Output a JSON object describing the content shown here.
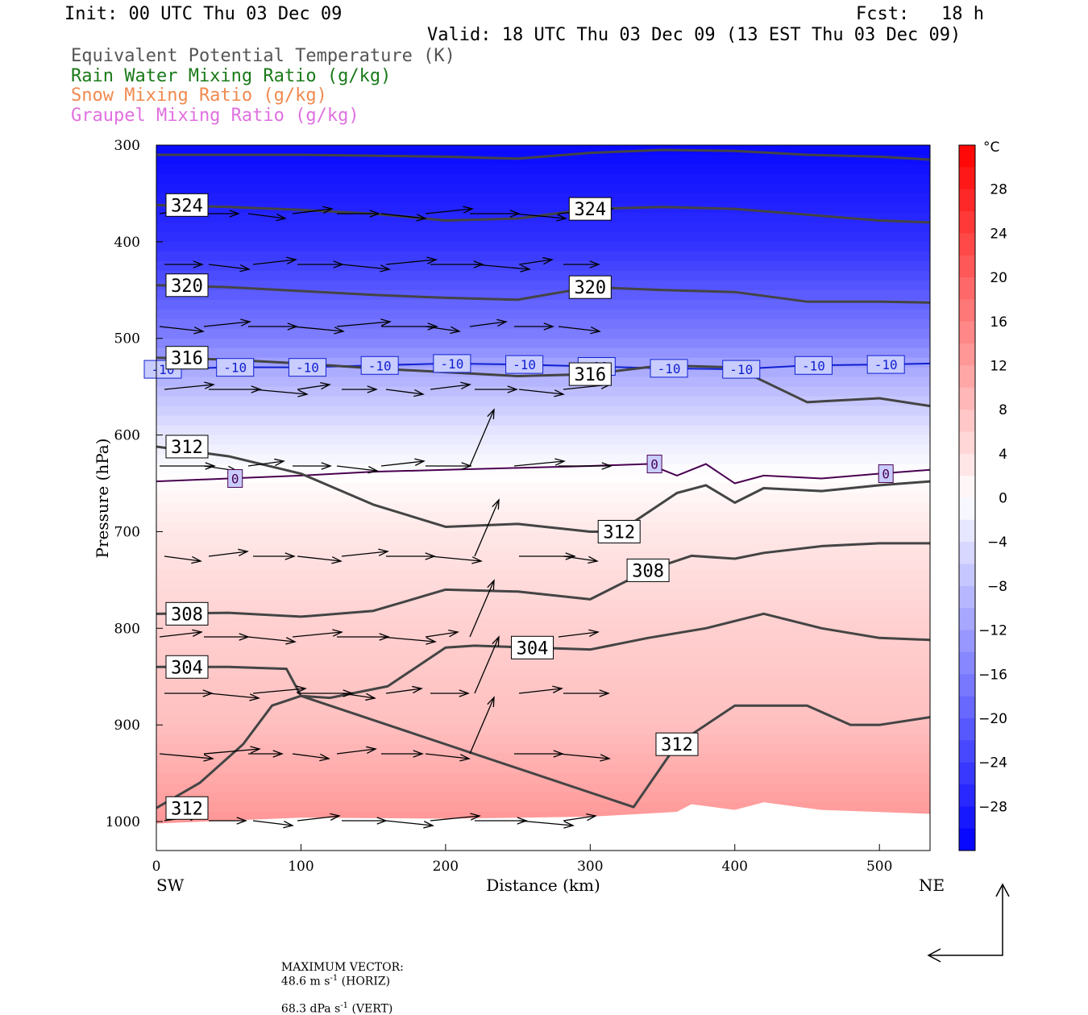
{
  "header": {
    "init": "Init: 00 UTC Thu 03 Dec 09",
    "fcst": "Fcst:   18 h",
    "valid": "Valid: 18 UTC Thu 03 Dec 09 (13 EST Thu 03 Dec 09)"
  },
  "legend": [
    {
      "text": "Equivalent Potential Temperature (K)",
      "color": "#555555"
    },
    {
      "text": "Rain Water Mixing Ratio (g/kg)",
      "color": "#1a7a1a"
    },
    {
      "text": "Snow Mixing Ratio (g/kg)",
      "color": "#f08a50"
    },
    {
      "text": "Graupel Mixing Ratio (g/kg)",
      "color": "#e070e0"
    }
  ],
  "chart_data": {
    "type": "cross-section",
    "xlabel": "Distance (km)",
    "ylabel": "Pressure (hPa)",
    "xlim": [
      0,
      535
    ],
    "ylim": [
      1030,
      300
    ],
    "x_ticks": [
      0,
      100,
      200,
      300,
      400,
      500
    ],
    "y_ticks": [
      300,
      400,
      500,
      600,
      700,
      800,
      900,
      1000
    ],
    "left_end_label": "SW",
    "right_end_label": "NE",
    "colorbar": {
      "unit": "°C",
      "ticks": [
        28,
        24,
        20,
        16,
        12,
        8,
        4,
        0,
        -4,
        -8,
        -12,
        -16,
        -20,
        -24,
        -28
      ],
      "range": [
        -32,
        32
      ]
    },
    "temperature_field": {
      "note": "shaded temperature (°C); approximate representative profile vs pressure",
      "levels_hPa": [
        300,
        400,
        500,
        530,
        600,
        640,
        700,
        800,
        900,
        1000
      ],
      "temp_C": [
        -31,
        -26,
        -16,
        -11,
        -3,
        0,
        3,
        6,
        8,
        13
      ]
    },
    "isotherms": [
      {
        "label": "-10",
        "x_km": [
          0,
          50,
          100,
          150,
          200,
          250,
          300,
          350,
          400,
          450,
          500,
          535
        ],
        "p_hPa": [
          532,
          530,
          530,
          528,
          526,
          527,
          529,
          531,
          532,
          528,
          527,
          526
        ]
      },
      {
        "label": "0",
        "x_km": [
          0,
          50,
          100,
          150,
          200,
          250,
          300,
          340,
          360,
          380,
          400,
          420,
          460,
          500,
          535
        ],
        "p_hPa": [
          648,
          645,
          642,
          638,
          636,
          634,
          632,
          630,
          642,
          630,
          650,
          642,
          645,
          640,
          636
        ]
      }
    ],
    "theta_e_contours": [
      {
        "label": "324",
        "x_km": [
          0,
          50,
          100,
          150,
          200,
          250,
          300,
          350,
          400,
          450,
          500,
          535
        ],
        "p_hPa": [
          362,
          364,
          367,
          371,
          378,
          376,
          366,
          364,
          366,
          372,
          378,
          380
        ]
      },
      {
        "label": "",
        "x_km": [
          0,
          100,
          200,
          250,
          300,
          350,
          400,
          450,
          500,
          535
        ],
        "p_hPa": [
          310,
          310,
          312,
          314,
          308,
          305,
          306,
          310,
          312,
          315
        ]
      },
      {
        "label": "320",
        "x_km": [
          0,
          50,
          100,
          150,
          200,
          250,
          300,
          350,
          400,
          450,
          500,
          535
        ],
        "p_hPa": [
          445,
          447,
          451,
          455,
          458,
          460,
          447,
          450,
          452,
          462,
          462,
          463
        ]
      },
      {
        "label": "316",
        "x_km": [
          0,
          50,
          100,
          150,
          200,
          250,
          300,
          350,
          400,
          450,
          500,
          535
        ],
        "p_hPa": [
          520,
          522,
          526,
          531,
          535,
          539,
          537,
          528,
          530,
          566,
          562,
          570
        ]
      },
      {
        "label": "312",
        "x_km": [
          0,
          50,
          100,
          150,
          200,
          250,
          300,
          320,
          360,
          380,
          400,
          420,
          460,
          500,
          535
        ],
        "p_hPa": [
          612,
          622,
          640,
          672,
          695,
          692,
          700,
          700,
          660,
          652,
          670,
          655,
          658,
          652,
          648
        ]
      },
      {
        "label": "308",
        "x_km": [
          0,
          50,
          100,
          150,
          200,
          250,
          300,
          340,
          370,
          400,
          420,
          460,
          500,
          535
        ],
        "p_hPa": [
          785,
          784,
          788,
          782,
          760,
          762,
          770,
          740,
          725,
          728,
          722,
          715,
          712,
          712
        ]
      },
      {
        "label": "304",
        "x_km": [
          0,
          50,
          90,
          100,
          120,
          160,
          200,
          220,
          260,
          300,
          340,
          380,
          420,
          460,
          500,
          535
        ],
        "p_hPa": [
          840,
          840,
          842,
          870,
          872,
          860,
          820,
          818,
          820,
          822,
          810,
          800,
          785,
          800,
          810,
          812
        ]
      },
      {
        "label": "312",
        "x_km": [
          0,
          30,
          60,
          80,
          100,
          330,
          360,
          400,
          450,
          480,
          500,
          535
        ],
        "p_hPa": [
          986,
          960,
          920,
          880,
          870,
          985,
          920,
          880,
          880,
          900,
          900,
          892
        ]
      }
    ],
    "vectors_max": {
      "horiz": "48.6",
      "vert": "68.3"
    },
    "footer_max": "MAXIMUM VECTOR:",
    "footer_horiz": "48.6 m s",
    "footer_horiz_tail": " (HORIZ)",
    "footer_vert": "68.3 dPa s",
    "footer_vert_tail": " (VERT)",
    "footer_exp": "-1"
  }
}
